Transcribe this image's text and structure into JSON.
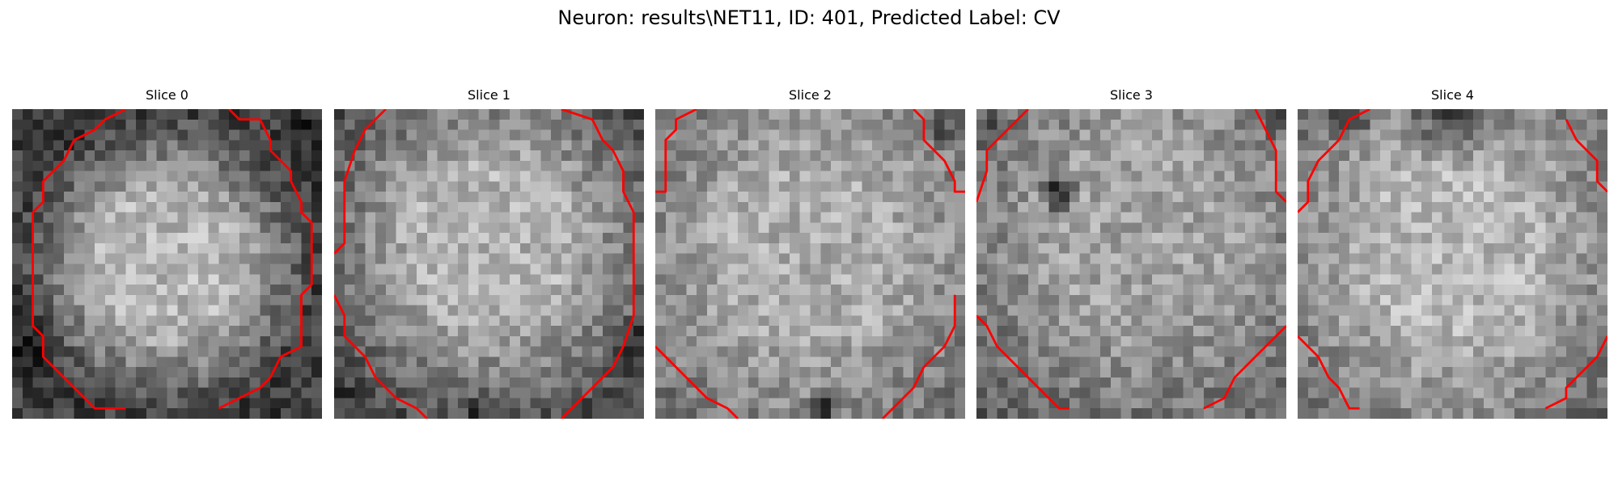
{
  "figure": {
    "title": "Neuron: results\\NET11, ID: 401, Predicted Label: CV"
  },
  "panels": [
    {
      "title": "Slice 0"
    },
    {
      "title": "Slice 1"
    },
    {
      "title": "Slice 2"
    },
    {
      "title": "Slice 3"
    },
    {
      "title": "Slice 4"
    }
  ],
  "colors": {
    "contour": "#ff0000",
    "background": "#ffffff"
  }
}
